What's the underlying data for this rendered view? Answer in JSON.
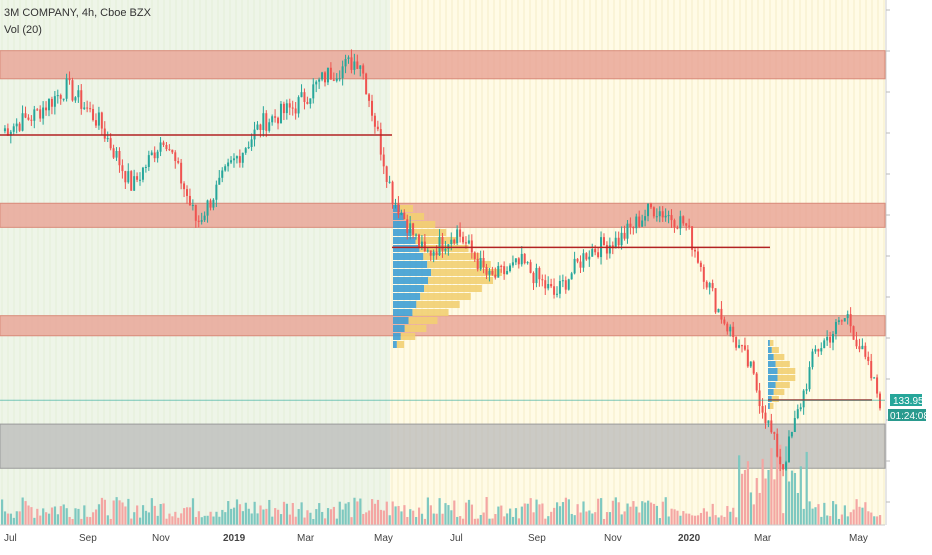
{
  "header": {
    "title": "3M COMPANY, 4h, Cboe BZX",
    "volume_label": "Vol (20)"
  },
  "price_tag": {
    "price": "133.95",
    "countdown": "01:24:08"
  },
  "colors": {
    "zone_red": "#e8a393",
    "zone_gray": "#b9b9b9",
    "level_line": "#b22222",
    "bull_candle": "#26a69a",
    "bear_candle": "#ef5350",
    "volume_up": "#7dc8c0",
    "volume_down": "#f4a6a3",
    "vp_blue": "#3f9fd4",
    "vp_yellow": "#f2cf72",
    "price_tag_bg": "#26a69a",
    "background_green": "#eef5e8",
    "background_yellow": "#fffbe6"
  },
  "chart_data": {
    "type": "candlestick",
    "symbol": "3M COMPANY",
    "interval": "4h",
    "exchange": "Cboe BZX",
    "x_ticks": [
      "Jul",
      "Sep",
      "Nov",
      "2019",
      "Mar",
      "May",
      "Jul",
      "Sep",
      "Nov",
      "2020",
      "Mar",
      "May"
    ],
    "ylim": [
      115,
      225
    ],
    "last_price": 133.95,
    "price_path": [
      {
        "x": "Jul",
        "y": 201
      },
      {
        "x": "Aug",
        "y": 205
      },
      {
        "x": "Sep",
        "y": 212
      },
      {
        "x": "Oct",
        "y": 203
      },
      {
        "x": "Nov",
        "y": 187
      },
      {
        "x": "Dec",
        "y": 200
      },
      {
        "x": "Dec",
        "y": 178
      },
      {
        "x": "2019",
        "y": 192
      },
      {
        "x": "Feb",
        "y": 203
      },
      {
        "x": "Mar",
        "y": 207
      },
      {
        "x": "Apr",
        "y": 215
      },
      {
        "x": "Apr",
        "y": 219
      },
      {
        "x": "May",
        "y": 185
      },
      {
        "x": "Jun",
        "y": 170
      },
      {
        "x": "Jul",
        "y": 176
      },
      {
        "x": "Aug",
        "y": 164
      },
      {
        "x": "Sep",
        "y": 168
      },
      {
        "x": "Oct",
        "y": 160
      },
      {
        "x": "Nov",
        "y": 171
      },
      {
        "x": "Dec",
        "y": 174
      },
      {
        "x": "2020",
        "y": 182
      },
      {
        "x": "Jan",
        "y": 178
      },
      {
        "x": "Feb",
        "y": 157
      },
      {
        "x": "Mar",
        "y": 142
      },
      {
        "x": "Mar",
        "y": 117
      },
      {
        "x": "Apr",
        "y": 146
      },
      {
        "x": "May",
        "y": 155
      },
      {
        "x": "May",
        "y": 134
      }
    ],
    "horizontal_levels": [
      {
        "label": "",
        "price": 200
      },
      {
        "label": "",
        "price": 172
      },
      {
        "label": "",
        "price": 134
      }
    ],
    "zones": [
      {
        "kind": "resistance",
        "from": 214,
        "to": 221
      },
      {
        "kind": "resistance",
        "from": 177,
        "to": 183
      },
      {
        "kind": "resistance",
        "from": 150,
        "to": 155
      },
      {
        "kind": "support",
        "from": 117,
        "to": 128
      }
    ],
    "volume_profiles": [
      {
        "period": "May-Jul 2019",
        "rows": 18
      },
      {
        "period": "Mar 2020",
        "rows": 10
      }
    ],
    "grid": false,
    "legend": "top-left"
  }
}
